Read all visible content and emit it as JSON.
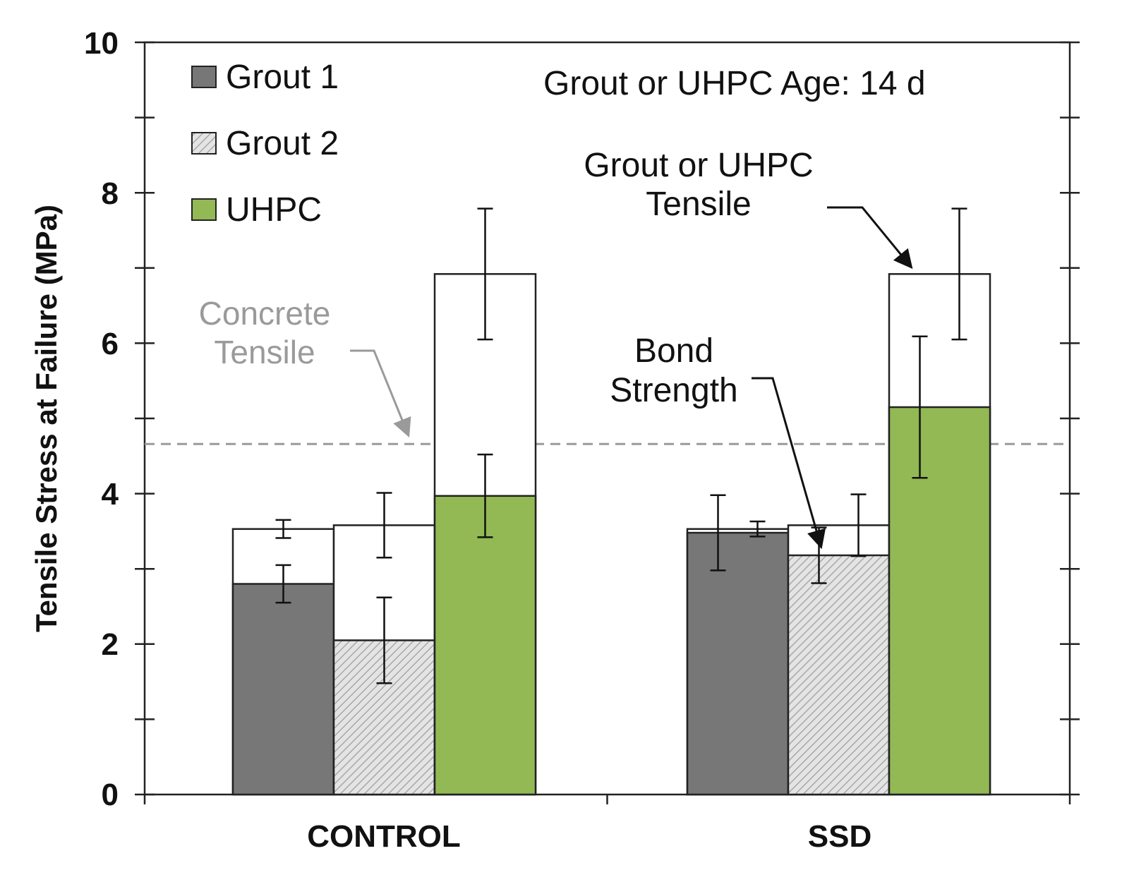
{
  "chart_data": {
    "type": "bar",
    "title": "",
    "xlabel": "",
    "ylabel": "Tensile Stress at Failure (MPa)",
    "ylim": [
      0,
      10
    ],
    "y_ticks": [
      "0",
      "2",
      "4",
      "6",
      "8",
      "10"
    ],
    "categories": [
      "CONTROL",
      "SSD"
    ],
    "colors": {
      "Grout 1": "#777777",
      "Grout 2": "#d9d9d9",
      "UHPC": "#92b954",
      "tensile": "#ffffff",
      "reference_line": "#9a9a9a"
    },
    "series": [
      {
        "name": "Grout 1",
        "bond_strength": [
          2.8,
          3.48
        ],
        "bond_error": [
          0.25,
          0.5
        ],
        "material_tensile": [
          3.53,
          3.53
        ],
        "tensile_error": [
          0.12,
          0.1
        ]
      },
      {
        "name": "Grout 2",
        "bond_strength": [
          2.05,
          3.18
        ],
        "bond_error": [
          0.57,
          0.37
        ],
        "material_tensile": [
          3.58,
          3.58
        ],
        "tensile_error": [
          0.43,
          0.41
        ]
      },
      {
        "name": "UHPC",
        "bond_strength": [
          3.97,
          5.15
        ],
        "bond_error": [
          0.55,
          0.94
        ],
        "material_tensile": [
          6.92,
          6.92
        ],
        "tensile_error": [
          0.87,
          0.87
        ]
      }
    ],
    "legend": [
      "Grout 1",
      "Grout 2",
      "UHPC"
    ],
    "legend_position": "top-left",
    "reference_line": {
      "label_lines": [
        "Concrete",
        "Tensile"
      ],
      "value": 4.66
    },
    "annotations": {
      "age": "Grout or UHPC Age: 14 d",
      "tensile": [
        "Grout or UHPC",
        "Tensile"
      ],
      "bond": [
        "Bond",
        "Strength"
      ]
    },
    "grid": false
  }
}
